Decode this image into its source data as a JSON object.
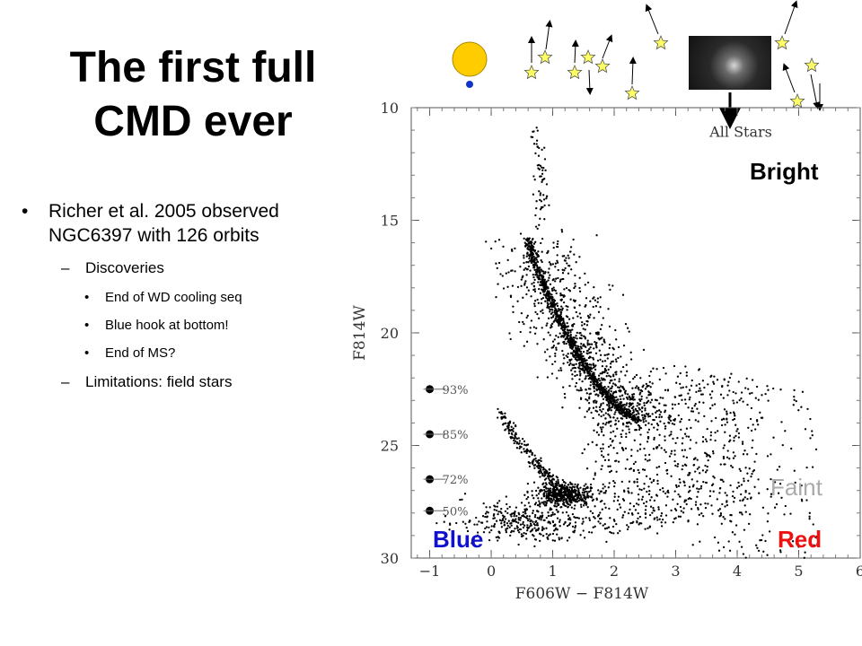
{
  "slide": {
    "title_line1": "The first full",
    "title_line2": "CMD ever",
    "bullet_main": "Richer et al. 2005 observed NGC6397 with 126 orbits",
    "sub_discoveries": "Discoveries",
    "discoveries": [
      "End of WD cooling seq",
      "Blue hook at bottom!",
      "End of MS?"
    ],
    "sub_limitations": "Limitations: field stars",
    "bullet_symbol": "•",
    "dash_symbol": "–"
  },
  "labels": {
    "bright": "Bright",
    "faint": "Faint",
    "blue": "Blue",
    "red": "Red"
  },
  "colors": {
    "blue_label": "#1111cc",
    "red_label": "#ee1111",
    "faint_label": "#aaaaaa",
    "sun": "#ffcc00",
    "star_fill": "#ffff66"
  },
  "chart_data": {
    "type": "scatter",
    "title": "All Stars",
    "xlabel": "F606W − F814W",
    "ylabel": "F814W",
    "xlim": [
      -1.3,
      6
    ],
    "ylim": [
      30,
      10
    ],
    "x_ticks": [
      "−1",
      "0",
      "1",
      "2",
      "3",
      "4",
      "5",
      "6"
    ],
    "y_ticks": [
      "10",
      "15",
      "20",
      "25",
      "30"
    ],
    "completeness": [
      {
        "mag": 22.5,
        "label": "93%"
      },
      {
        "mag": 24.5,
        "label": "85%"
      },
      {
        "mag": 26.5,
        "label": "72%"
      },
      {
        "mag": 27.9,
        "label": "50%"
      }
    ],
    "main_sequence_ridge": [
      [
        0.6,
        15.8
      ],
      [
        0.7,
        16.9
      ],
      [
        0.85,
        17.9
      ],
      [
        1.0,
        18.8
      ],
      [
        1.2,
        19.9
      ],
      [
        1.4,
        20.9
      ],
      [
        1.6,
        21.8
      ],
      [
        1.85,
        22.7
      ],
      [
        2.1,
        23.4
      ],
      [
        2.4,
        23.9
      ]
    ],
    "giant_branch": [
      [
        0.75,
        11.0
      ],
      [
        0.8,
        12.5
      ],
      [
        0.82,
        13.5
      ],
      [
        0.85,
        14.5
      ],
      [
        0.75,
        15.0
      ]
    ],
    "white_dwarf_sequence": [
      [
        0.1,
        23.2
      ],
      [
        0.4,
        24.6
      ],
      [
        0.7,
        25.7
      ],
      [
        1.0,
        26.6
      ],
      [
        1.3,
        27.2
      ]
    ],
    "grid": false
  }
}
